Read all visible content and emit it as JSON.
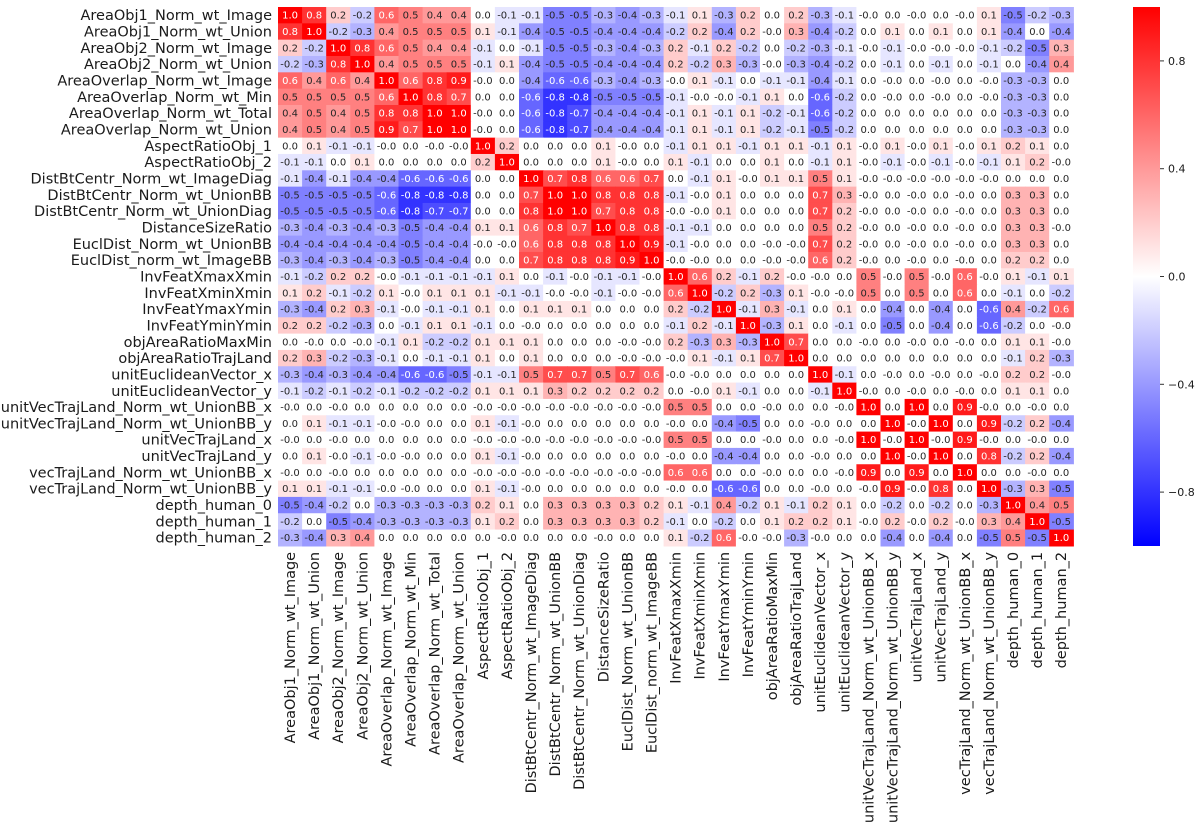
{
  "chart_data": {
    "type": "heatmap",
    "colormap": "bwr",
    "vmin": -1,
    "vmax": 1,
    "colorbar_ticks": [
      "0.8",
      "0.4",
      "0.0",
      "−0.4",
      "−0.8"
    ],
    "colorbar_tick_values": [
      0.8,
      0.4,
      0.0,
      -0.4,
      -0.8
    ],
    "labels": [
      "AreaObj1_Norm_wt_Image",
      "AreaObj1_Norm_wt_Union",
      "AreaObj2_Norm_wt_Image",
      "AreaObj2_Norm_wt_Union",
      "AreaOverlap_Norm_wt_Image",
      "AreaOverlap_Norm_wt_Min",
      "AreaOverlap_Norm_wt_Total",
      "AreaOverlap_Norm_wt_Union",
      "AspectRatioObj_1",
      "AspectRatioObj_2",
      "DistBtCentr_Norm_wt_ImageDiag",
      "DistBtCentr_Norm_wt_UnionBB",
      "DistBtCentr_Norm_wt_UnionDiag",
      "DistanceSizeRatio",
      "EuclDist_Norm_wt_UnionBB",
      "EuclDist_norm_wt_ImageBB",
      "InvFeatXmaxXmin",
      "InvFeatXminXmin",
      "InvFeatYmaxYmin",
      "InvFeatYminYmin",
      "objAreaRatioMaxMin",
      "objAreaRatioTrajLand",
      "unitEuclideanVector_x",
      "unitEuclideanVector_y",
      "unitVecTrajLand_Norm_wt_UnionBB_x",
      "unitVecTrajLand_Norm_wt_UnionBB_y",
      "unitVecTrajLand_x",
      "unitVecTrajLand_y",
      "vecTrajLand_Norm_wt_UnionBB_x",
      "vecTrajLand_Norm_wt_UnionBB_y",
      "depth_human_0",
      "depth_human_1",
      "depth_human_2"
    ],
    "cells": [
      [
        "1.0",
        "0.8",
        "0.2",
        "-0.2",
        "0.6",
        "0.5",
        "0.4",
        "0.4",
        "0.0",
        "-0.1",
        "-0.1",
        "-0.5",
        "-0.5",
        "-0.3",
        "-0.4",
        "-0.3",
        "-0.1",
        "0.1",
        "-0.3",
        "0.2",
        "0.0",
        "0.2",
        "-0.3",
        "-0.1",
        "-0.0",
        "0.0",
        "-0.0",
        "0.0",
        "-0.0",
        "0.1",
        "-0.5",
        "-0.2",
        "-0.3"
      ],
      [
        "0.8",
        "1.0",
        "-0.2",
        "-0.3",
        "0.4",
        "0.5",
        "0.5",
        "0.5",
        "0.1",
        "-0.1",
        "-0.4",
        "-0.5",
        "-0.5",
        "-0.4",
        "-0.4",
        "-0.4",
        "-0.2",
        "0.2",
        "-0.4",
        "0.2",
        "-0.0",
        "0.3",
        "-0.4",
        "-0.2",
        "0.0",
        "0.1",
        "0.0",
        "0.1",
        "0.0",
        "0.1",
        "-0.4",
        "0.0",
        "-0.4"
      ],
      [
        "0.2",
        "-0.2",
        "1.0",
        "0.8",
        "0.6",
        "0.5",
        "0.4",
        "0.4",
        "-0.1",
        "0.0",
        "-0.1",
        "-0.5",
        "-0.5",
        "-0.3",
        "-0.4",
        "-0.3",
        "0.2",
        "-0.1",
        "0.2",
        "-0.2",
        "0.0",
        "-0.2",
        "-0.3",
        "-0.1",
        "-0.0",
        "-0.1",
        "-0.0",
        "-0.0",
        "-0.0",
        "-0.1",
        "-0.2",
        "-0.5",
        "0.3"
      ],
      [
        "-0.2",
        "-0.3",
        "0.8",
        "1.0",
        "0.4",
        "0.5",
        "0.5",
        "0.5",
        "-0.1",
        "0.1",
        "-0.4",
        "-0.5",
        "-0.5",
        "-0.4",
        "-0.4",
        "-0.4",
        "0.2",
        "-0.2",
        "0.3",
        "-0.3",
        "-0.0",
        "-0.3",
        "-0.4",
        "-0.2",
        "0.0",
        "-0.1",
        "0.0",
        "-0.1",
        "0.0",
        "-0.1",
        "0.0",
        "-0.4",
        "0.4"
      ],
      [
        "0.6",
        "0.4",
        "0.6",
        "0.4",
        "1.0",
        "0.6",
        "0.8",
        "0.9",
        "-0.0",
        "0.0",
        "-0.4",
        "-0.6",
        "-0.6",
        "-0.3",
        "-0.4",
        "-0.3",
        "-0.0",
        "0.1",
        "-0.1",
        "0.0",
        "-0.1",
        "-0.1",
        "-0.4",
        "-0.1",
        "0.0",
        "-0.0",
        "0.0",
        "-0.0",
        "0.0",
        "-0.0",
        "-0.3",
        "-0.3",
        "0.0"
      ],
      [
        "0.5",
        "0.5",
        "0.5",
        "0.5",
        "0.6",
        "1.0",
        "0.8",
        "0.7",
        "0.0",
        "0.0",
        "-0.6",
        "-0.8",
        "-0.8",
        "-0.5",
        "-0.5",
        "-0.5",
        "-0.1",
        "-0.0",
        "-0.0",
        "-0.1",
        "0.1",
        "0.0",
        "-0.6",
        "-0.2",
        "0.0",
        "-0.0",
        "0.0",
        "-0.0",
        "0.0",
        "-0.0",
        "-0.3",
        "-0.3",
        "0.0"
      ],
      [
        "0.4",
        "0.5",
        "0.4",
        "0.5",
        "0.8",
        "0.8",
        "1.0",
        "1.0",
        "-0.0",
        "0.0",
        "-0.6",
        "-0.8",
        "-0.7",
        "-0.4",
        "-0.4",
        "-0.4",
        "-0.1",
        "0.1",
        "-0.1",
        "0.1",
        "-0.2",
        "-0.1",
        "-0.6",
        "-0.2",
        "0.0",
        "0.0",
        "0.0",
        "0.0",
        "0.0",
        "0.0",
        "-0.3",
        "-0.3",
        "0.0"
      ],
      [
        "0.4",
        "0.5",
        "0.4",
        "0.5",
        "0.9",
        "0.7",
        "1.0",
        "1.0",
        "-0.0",
        "0.0",
        "-0.6",
        "-0.8",
        "-0.7",
        "-0.4",
        "-0.4",
        "-0.4",
        "-0.1",
        "0.1",
        "-0.1",
        "0.1",
        "-0.2",
        "-0.1",
        "-0.5",
        "-0.2",
        "0.0",
        "0.0",
        "0.0",
        "0.0",
        "0.0",
        "0.0",
        "-0.3",
        "-0.3",
        "0.0"
      ],
      [
        "0.0",
        "0.1",
        "-0.1",
        "-0.1",
        "-0.0",
        "0.0",
        "-0.0",
        "-0.0",
        "1.0",
        "0.2",
        "0.0",
        "0.0",
        "0.0",
        "0.1",
        "-0.0",
        "0.0",
        "-0.1",
        "0.1",
        "0.1",
        "-0.1",
        "0.1",
        "0.1",
        "-0.1",
        "0.1",
        "-0.0",
        "0.1",
        "-0.0",
        "0.1",
        "-0.0",
        "0.1",
        "0.2",
        "0.1",
        "0.0"
      ],
      [
        "-0.1",
        "-0.1",
        "0.0",
        "0.1",
        "0.0",
        "0.0",
        "0.0",
        "0.0",
        "0.2",
        "1.0",
        "0.0",
        "0.0",
        "0.0",
        "0.1",
        "-0.0",
        "0.0",
        "0.1",
        "-0.1",
        "0.0",
        "0.0",
        "0.1",
        "0.0",
        "-0.1",
        "0.1",
        "-0.0",
        "-0.1",
        "-0.0",
        "-0.1",
        "-0.0",
        "-0.1",
        "0.1",
        "0.2",
        "-0.0"
      ],
      [
        "-0.1",
        "-0.4",
        "-0.1",
        "-0.4",
        "-0.4",
        "-0.6",
        "-0.6",
        "-0.6",
        "0.0",
        "0.0",
        "1.0",
        "0.7",
        "0.8",
        "0.6",
        "0.6",
        "0.7",
        "0.0",
        "-0.1",
        "0.1",
        "-0.0",
        "0.1",
        "0.1",
        "0.5",
        "0.1",
        "-0.0",
        "-0.0",
        "-0.0",
        "-0.0",
        "-0.0",
        "-0.0",
        "0.0",
        "0.0",
        "0.0"
      ],
      [
        "-0.5",
        "-0.5",
        "-0.5",
        "-0.5",
        "-0.6",
        "-0.8",
        "-0.8",
        "-0.8",
        "0.0",
        "0.0",
        "0.7",
        "1.0",
        "1.0",
        "0.8",
        "0.8",
        "0.8",
        "-0.1",
        "-0.0",
        "0.1",
        "0.0",
        "0.0",
        "0.0",
        "0.7",
        "0.3",
        "-0.0",
        "0.0",
        "-0.0",
        "0.0",
        "-0.0",
        "0.0",
        "0.3",
        "0.3",
        "0.0"
      ],
      [
        "-0.5",
        "-0.5",
        "-0.5",
        "-0.5",
        "-0.6",
        "-0.8",
        "-0.7",
        "-0.7",
        "0.0",
        "0.0",
        "0.8",
        "1.0",
        "1.0",
        "0.7",
        "0.8",
        "0.8",
        "-0.0",
        "-0.0",
        "0.1",
        "0.0",
        "0.0",
        "0.0",
        "0.7",
        "0.2",
        "-0.0",
        "0.0",
        "-0.0",
        "0.0",
        "-0.0",
        "0.0",
        "0.3",
        "0.3",
        "0.0"
      ],
      [
        "-0.3",
        "-0.4",
        "-0.3",
        "-0.4",
        "-0.3",
        "-0.5",
        "-0.4",
        "-0.4",
        "0.1",
        "0.1",
        "0.6",
        "0.8",
        "0.7",
        "1.0",
        "0.8",
        "0.8",
        "-0.1",
        "-0.1",
        "0.0",
        "0.0",
        "0.0",
        "0.0",
        "0.5",
        "0.2",
        "-0.0",
        "0.0",
        "-0.0",
        "0.0",
        "-0.0",
        "0.0",
        "0.3",
        "0.3",
        "-0.0"
      ],
      [
        "-0.4",
        "-0.4",
        "-0.4",
        "-0.4",
        "-0.4",
        "-0.5",
        "-0.4",
        "-0.4",
        "-0.0",
        "-0.0",
        "0.6",
        "0.8",
        "0.8",
        "0.8",
        "1.0",
        "0.9",
        "-0.1",
        "-0.0",
        "0.0",
        "0.0",
        "-0.0",
        "-0.0",
        "0.7",
        "0.2",
        "-0.0",
        "0.0",
        "-0.0",
        "0.0",
        "-0.0",
        "0.0",
        "0.3",
        "0.3",
        "0.0"
      ],
      [
        "-0.3",
        "-0.4",
        "-0.3",
        "-0.4",
        "-0.3",
        "-0.5",
        "-0.4",
        "-0.4",
        "0.0",
        "0.0",
        "0.7",
        "0.8",
        "0.8",
        "0.8",
        "0.9",
        "1.0",
        "-0.0",
        "-0.0",
        "0.0",
        "0.0",
        "-0.0",
        "-0.0",
        "0.6",
        "0.2",
        "-0.0",
        "0.0",
        "-0.0",
        "0.0",
        "-0.0",
        "0.0",
        "0.2",
        "0.2",
        "0.0"
      ],
      [
        "-0.1",
        "-0.2",
        "0.2",
        "0.2",
        "-0.0",
        "-0.1",
        "-0.1",
        "-0.1",
        "-0.1",
        "0.1",
        "0.0",
        "-0.1",
        "-0.0",
        "-0.1",
        "-0.1",
        "-0.0",
        "1.0",
        "0.6",
        "0.2",
        "-0.1",
        "0.2",
        "-0.0",
        "-0.0",
        "0.0",
        "0.5",
        "-0.0",
        "0.5",
        "-0.0",
        "0.6",
        "-0.0",
        "0.1",
        "-0.1",
        "0.1"
      ],
      [
        "0.1",
        "0.2",
        "-0.1",
        "-0.2",
        "0.1",
        "-0.0",
        "0.1",
        "0.1",
        "0.1",
        "-0.1",
        "-0.1",
        "-0.0",
        "-0.0",
        "-0.1",
        "-0.0",
        "-0.0",
        "0.6",
        "1.0",
        "-0.2",
        "0.2",
        "-0.3",
        "0.1",
        "-0.0",
        "-0.0",
        "0.5",
        "0.0",
        "0.5",
        "0.0",
        "0.6",
        "0.0",
        "-0.1",
        "0.0",
        "-0.2"
      ],
      [
        "-0.3",
        "-0.4",
        "0.2",
        "0.3",
        "-0.1",
        "-0.0",
        "-0.1",
        "-0.1",
        "0.1",
        "0.0",
        "0.1",
        "0.1",
        "0.1",
        "0.0",
        "0.0",
        "0.0",
        "0.2",
        "-0.2",
        "1.0",
        "-0.1",
        "0.3",
        "-0.1",
        "0.0",
        "0.1",
        "0.0",
        "-0.4",
        "0.0",
        "-0.4",
        "0.0",
        "-0.6",
        "0.4",
        "-0.2",
        "0.6"
      ],
      [
        "0.2",
        "0.2",
        "-0.2",
        "-0.3",
        "0.0",
        "-0.1",
        "0.1",
        "0.1",
        "-0.1",
        "0.0",
        "-0.0",
        "0.0",
        "0.0",
        "0.0",
        "0.0",
        "0.0",
        "-0.1",
        "0.2",
        "-0.1",
        "1.0",
        "-0.3",
        "0.1",
        "0.0",
        "-0.1",
        "0.0",
        "-0.5",
        "0.0",
        "-0.4",
        "0.0",
        "-0.6",
        "-0.2",
        "0.0",
        "-0.0"
      ],
      [
        "0.0",
        "-0.0",
        "0.0",
        "-0.0",
        "-0.1",
        "0.1",
        "-0.2",
        "-0.2",
        "0.1",
        "0.1",
        "0.1",
        "0.0",
        "0.0",
        "0.0",
        "-0.0",
        "-0.0",
        "0.2",
        "-0.3",
        "0.3",
        "-0.3",
        "1.0",
        "0.7",
        "0.0",
        "0.0",
        "-0.0",
        "0.0",
        "-0.0",
        "0.0",
        "-0.0",
        "0.0",
        "0.1",
        "0.1",
        "-0.0"
      ],
      [
        "0.2",
        "0.3",
        "-0.2",
        "-0.3",
        "-0.1",
        "0.0",
        "-0.1",
        "-0.1",
        "0.1",
        "0.0",
        "0.1",
        "0.0",
        "0.0",
        "0.0",
        "-0.0",
        "-0.0",
        "-0.0",
        "0.1",
        "-0.1",
        "0.1",
        "0.7",
        "1.0",
        "0.0",
        "0.0",
        "0.0",
        "0.0",
        "0.0",
        "0.0",
        "0.0",
        "0.0",
        "-0.1",
        "0.2",
        "-0.3"
      ],
      [
        "-0.3",
        "-0.4",
        "-0.3",
        "-0.4",
        "-0.4",
        "-0.6",
        "-0.6",
        "-0.5",
        "-0.1",
        "-0.1",
        "0.5",
        "0.7",
        "0.7",
        "0.5",
        "0.7",
        "0.6",
        "-0.0",
        "-0.0",
        "0.0",
        "0.0",
        "0.0",
        "0.0",
        "1.0",
        "-0.1",
        "0.0",
        "-0.0",
        "0.0",
        "-0.0",
        "0.0",
        "-0.0",
        "0.2",
        "0.2",
        "-0.0"
      ],
      [
        "-0.1",
        "-0.2",
        "-0.1",
        "-0.2",
        "-0.1",
        "-0.2",
        "-0.2",
        "-0.2",
        "0.1",
        "0.1",
        "0.1",
        "0.3",
        "0.2",
        "0.2",
        "0.2",
        "0.2",
        "0.0",
        "-0.0",
        "0.1",
        "-0.1",
        "0.0",
        "0.0",
        "-0.1",
        "1.0",
        "-0.0",
        "0.0",
        "-0.0",
        "0.0",
        "-0.0",
        "0.0",
        "0.1",
        "0.1",
        "0.0"
      ],
      [
        "-0.0",
        "0.0",
        "-0.0",
        "0.0",
        "0.0",
        "0.0",
        "0.0",
        "0.0",
        "-0.0",
        "-0.0",
        "-0.0",
        "-0.0",
        "-0.0",
        "-0.0",
        "-0.0",
        "-0.0",
        "0.5",
        "0.5",
        "0.0",
        "0.0",
        "-0.0",
        "0.0",
        "0.0",
        "-0.0",
        "1.0",
        "0.0",
        "1.0",
        "0.0",
        "0.9",
        "-0.0",
        "0.0",
        "-0.0",
        "0.0"
      ],
      [
        "0.0",
        "0.1",
        "-0.1",
        "-0.1",
        "-0.0",
        "-0.0",
        "0.0",
        "0.0",
        "0.1",
        "-0.1",
        "-0.0",
        "0.0",
        "0.0",
        "0.0",
        "0.0",
        "0.0",
        "-0.0",
        "0.0",
        "-0.4",
        "-0.5",
        "0.0",
        "0.0",
        "-0.0",
        "0.0",
        "0.0",
        "1.0",
        "-0.0",
        "1.0",
        "0.0",
        "0.9",
        "-0.2",
        "0.2",
        "-0.4"
      ],
      [
        "-0.0",
        "0.0",
        "-0.0",
        "0.0",
        "0.0",
        "0.0",
        "0.0",
        "0.0",
        "-0.0",
        "-0.0",
        "-0.0",
        "-0.0",
        "-0.0",
        "-0.0",
        "-0.0",
        "-0.0",
        "0.5",
        "0.5",
        "0.0",
        "0.0",
        "-0.0",
        "0.0",
        "0.0",
        "-0.0",
        "1.0",
        "-0.0",
        "1.0",
        "-0.0",
        "0.9",
        "-0.0",
        "0.0",
        "-0.0",
        "0.0"
      ],
      [
        "0.0",
        "0.1",
        "-0.0",
        "-0.1",
        "-0.0",
        "-0.0",
        "0.0",
        "0.0",
        "0.1",
        "-0.1",
        "-0.0",
        "0.0",
        "0.0",
        "0.0",
        "0.0",
        "0.0",
        "-0.0",
        "0.0",
        "-0.4",
        "-0.4",
        "0.0",
        "0.0",
        "-0.0",
        "0.0",
        "0.0",
        "1.0",
        "-0.0",
        "1.0",
        "0.0",
        "0.8",
        "-0.2",
        "0.2",
        "-0.4"
      ],
      [
        "-0.0",
        "0.0",
        "-0.0",
        "0.0",
        "0.0",
        "0.0",
        "0.0",
        "0.0",
        "-0.0",
        "-0.0",
        "-0.0",
        "-0.0",
        "-0.0",
        "-0.0",
        "-0.0",
        "-0.0",
        "0.6",
        "0.6",
        "0.0",
        "0.0",
        "-0.0",
        "0.0",
        "0.0",
        "-0.0",
        "0.9",
        "0.0",
        "0.9",
        "0.0",
        "1.0",
        "0.0",
        "0.0",
        "-0.0",
        "0.0"
      ],
      [
        "0.1",
        "0.1",
        "-0.1",
        "-0.1",
        "-0.0",
        "-0.0",
        "0.0",
        "0.0",
        "0.1",
        "-0.1",
        "-0.0",
        "0.0",
        "0.0",
        "0.0",
        "0.0",
        "0.0",
        "-0.0",
        "0.0",
        "-0.6",
        "-0.6",
        "0.0",
        "0.0",
        "-0.0",
        "0.0",
        "-0.0",
        "0.9",
        "-0.0",
        "0.8",
        "0.0",
        "1.0",
        "-0.3",
        "0.3",
        "-0.5"
      ],
      [
        "-0.5",
        "-0.4",
        "-0.2",
        "0.0",
        "-0.3",
        "-0.3",
        "-0.3",
        "-0.3",
        "0.2",
        "0.1",
        "0.0",
        "0.3",
        "0.3",
        "0.3",
        "0.3",
        "0.2",
        "0.1",
        "-0.1",
        "0.4",
        "-0.2",
        "0.1",
        "-0.1",
        "0.2",
        "0.1",
        "0.0",
        "-0.2",
        "0.0",
        "-0.2",
        "0.0",
        "-0.3",
        "1.0",
        "0.4",
        "0.5"
      ],
      [
        "-0.2",
        "0.0",
        "-0.5",
        "-0.4",
        "-0.3",
        "-0.3",
        "-0.3",
        "-0.3",
        "0.1",
        "0.2",
        "0.0",
        "0.3",
        "0.3",
        "0.3",
        "0.3",
        "0.2",
        "-0.1",
        "0.0",
        "-0.2",
        "0.0",
        "0.1",
        "0.2",
        "0.2",
        "0.1",
        "-0.0",
        "0.2",
        "-0.0",
        "0.2",
        "-0.0",
        "0.3",
        "0.4",
        "1.0",
        "-0.5"
      ],
      [
        "-0.3",
        "-0.4",
        "0.3",
        "0.4",
        "0.0",
        "0.0",
        "0.0",
        "0.0",
        "0.0",
        "-0.0",
        "0.0",
        "0.0",
        "0.0",
        "-0.0",
        "0.0",
        "0.0",
        "0.1",
        "-0.2",
        "0.6",
        "-0.0",
        "-0.0",
        "-0.3",
        "-0.0",
        "0.0",
        "0.0",
        "-0.4",
        "0.0",
        "-0.4",
        "0.0",
        "-0.5",
        "0.5",
        "-0.5",
        "1.0"
      ]
    ]
  }
}
